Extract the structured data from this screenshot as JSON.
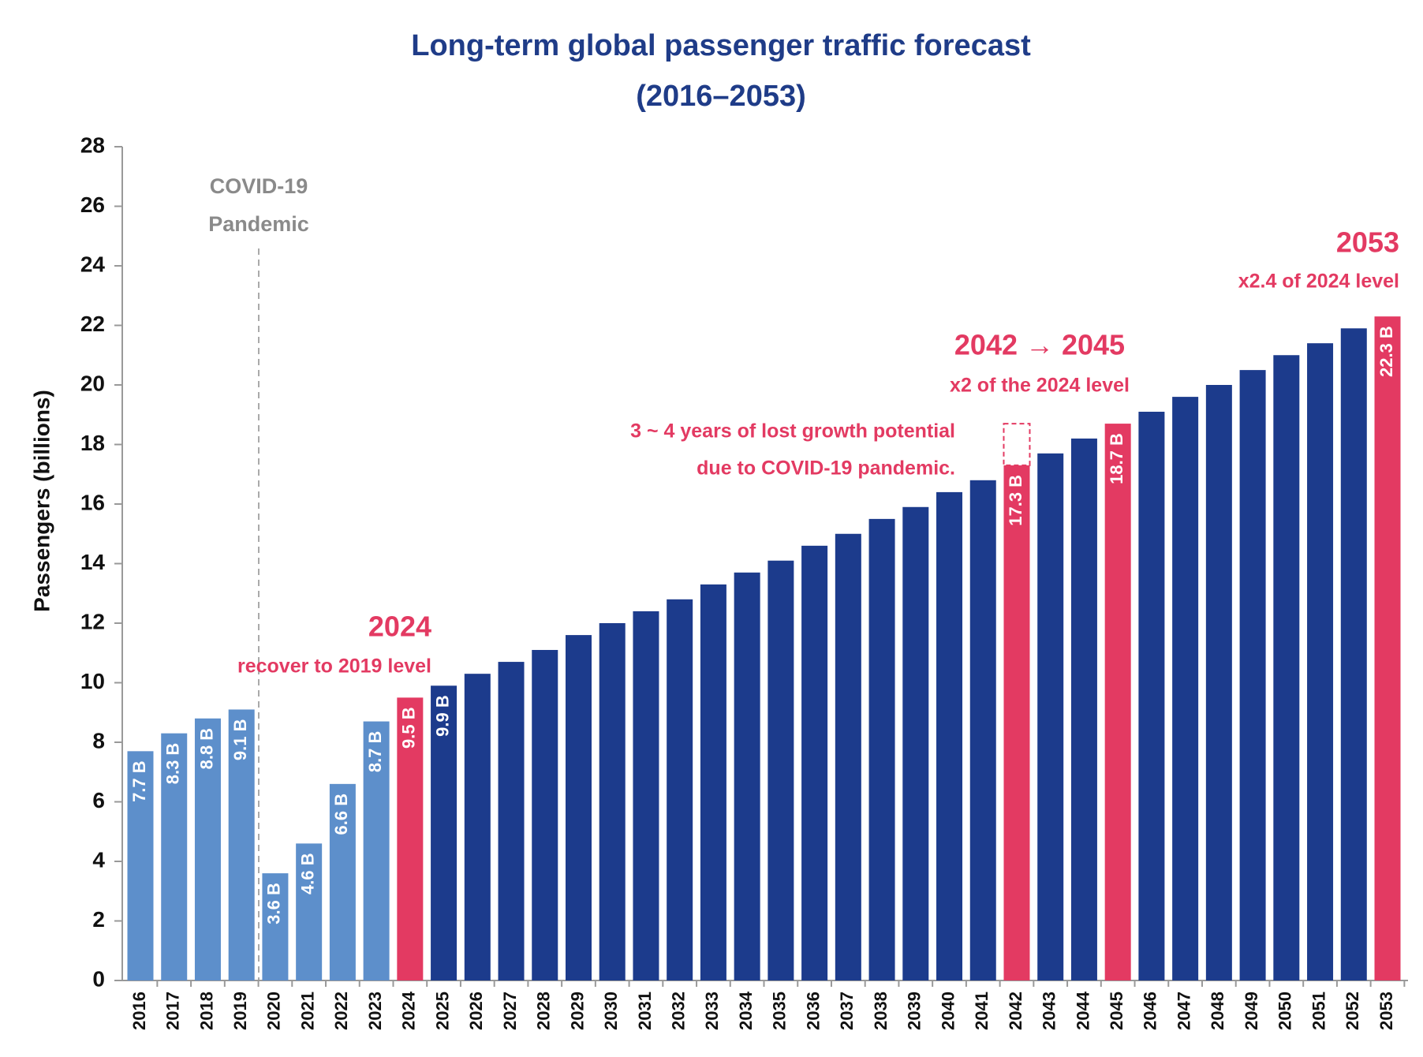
{
  "chart_data": {
    "type": "bar",
    "title": [
      "Long-term global passenger traffic forecast",
      "(2016–2053)"
    ],
    "y_label": "Passengers (billions)",
    "categories": [
      "2016",
      "2017",
      "2018",
      "2019",
      "2020",
      "2021",
      "2022",
      "2023",
      "2024",
      "2025",
      "2026",
      "2027",
      "2028",
      "2029",
      "2030",
      "2031",
      "2032",
      "2033",
      "2034",
      "2035",
      "2036",
      "2037",
      "2038",
      "2039",
      "2040",
      "2041",
      "2042",
      "2043",
      "2044",
      "2045",
      "2046",
      "2047",
      "2048",
      "2049",
      "2050",
      "2051",
      "2052",
      "2053"
    ],
    "values": [
      7.7,
      8.3,
      8.8,
      9.1,
      3.6,
      4.6,
      6.6,
      8.7,
      9.5,
      9.9,
      10.3,
      10.7,
      11.1,
      11.6,
      12.0,
      12.4,
      12.8,
      13.3,
      13.7,
      14.1,
      14.6,
      15.0,
      15.5,
      15.9,
      16.4,
      16.8,
      17.3,
      17.7,
      18.2,
      18.7,
      19.1,
      19.6,
      20.0,
      20.5,
      21.0,
      21.4,
      21.9,
      22.3
    ],
    "value_labels": [
      "7.7 B",
      "8.3 B",
      "8.8 B",
      "9.1 B",
      "3.6 B",
      "4.6 B",
      "6.6 B",
      "8.7 B",
      "9.5 B",
      "9.9 B",
      null,
      null,
      null,
      null,
      null,
      null,
      null,
      null,
      null,
      null,
      null,
      null,
      null,
      null,
      null,
      null,
      "17.3 B",
      null,
      null,
      "18.7 B",
      null,
      null,
      null,
      null,
      null,
      null,
      null,
      "22.3 B"
    ],
    "colors": [
      "#5d8fcb",
      "#5d8fcb",
      "#5d8fcb",
      "#5d8fcb",
      "#5d8fcb",
      "#5d8fcb",
      "#5d8fcb",
      "#5d8fcb",
      "#e33a62",
      "#1c3b8c",
      "#1c3b8c",
      "#1c3b8c",
      "#1c3b8c",
      "#1c3b8c",
      "#1c3b8c",
      "#1c3b8c",
      "#1c3b8c",
      "#1c3b8c",
      "#1c3b8c",
      "#1c3b8c",
      "#1c3b8c",
      "#1c3b8c",
      "#1c3b8c",
      "#1c3b8c",
      "#1c3b8c",
      "#1c3b8c",
      "#e33a62",
      "#1c3b8c",
      "#1c3b8c",
      "#e33a62",
      "#1c3b8c",
      "#1c3b8c",
      "#1c3b8c",
      "#1c3b8c",
      "#1c3b8c",
      "#1c3b8c",
      "#1c3b8c",
      "#e33a62"
    ],
    "ylim": [
      0,
      28
    ],
    "yticks": [
      0,
      2,
      4,
      6,
      8,
      10,
      12,
      14,
      16,
      18,
      20,
      22,
      24,
      26,
      28
    ],
    "grid": false,
    "annotations": [
      "COVID-19",
      "Pandemic",
      "2024",
      "recover to 2019 level",
      "3 ~ 4 years of lost growth potential",
      "due to COVID-19 pandemic.",
      "2042 → 2045",
      "x2 of the 2024 level",
      "2053",
      "x2.4 of 2024 level"
    ]
  }
}
